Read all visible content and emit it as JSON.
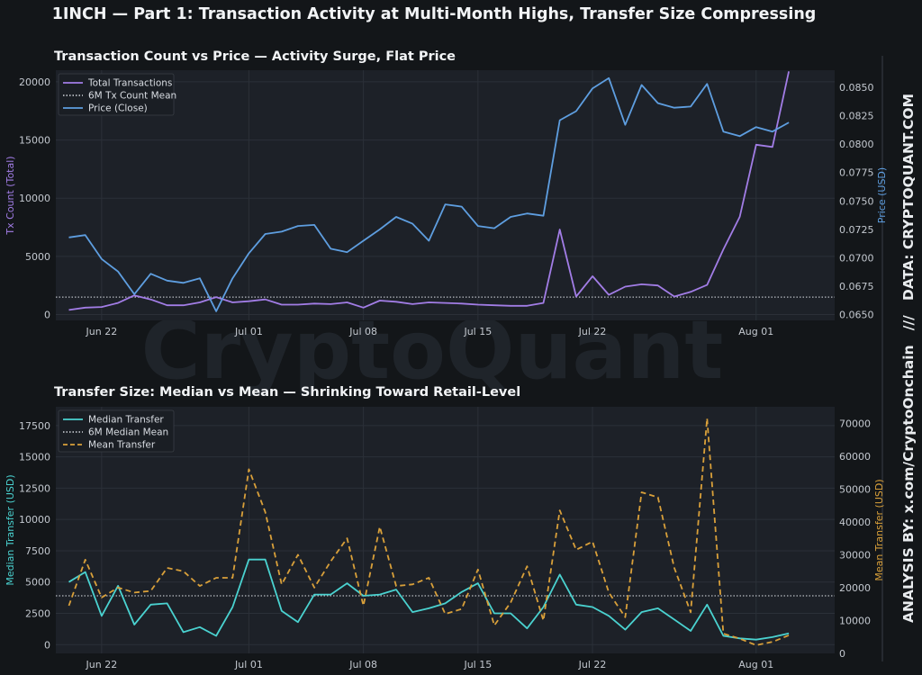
{
  "title": "1INCH — Part 1: Transaction Activity at Multi-Month Highs, Transfer Size Compressing",
  "watermark": "CryptoQuant",
  "side_text": "ANALYSIS BY: x.com/CryptoOnchain   ///   DATA: CRYPTOQUANT.COM",
  "colors": {
    "background": "#131619",
    "plot_bg": "#1d2128",
    "purple": "#a27de6",
    "blue": "#5e9ee0",
    "teal": "#4ad2d0",
    "orange": "#d9a03a",
    "ref_line": "#b8bcc2"
  },
  "chart_data": [
    {
      "type": "line",
      "title": "Transaction Count vs Price — Activity Surge, Flat Price",
      "ylabel": "Tx Count (Total)",
      "y2label": "Price (USD)",
      "ylim": [
        -500,
        21000
      ],
      "y2lim": [
        0.0645,
        0.0865
      ],
      "yticks": [
        0,
        5000,
        10000,
        15000,
        20000
      ],
      "y2ticks": [
        0.065,
        0.0675,
        0.07,
        0.0725,
        0.075,
        0.0775,
        0.08,
        0.0825,
        0.085
      ],
      "x_start": "Jun 20",
      "xlim": [
        -0.8,
        46.8
      ],
      "xticks": [
        {
          "x": 2,
          "label": "Jun 22"
        },
        {
          "x": 11,
          "label": "Jul 01"
        },
        {
          "x": 18,
          "label": "Jul 08"
        },
        {
          "x": 25,
          "label": "Jul 15"
        },
        {
          "x": 32,
          "label": "Jul 22"
        },
        {
          "x": 42,
          "label": "Aug 01"
        }
      ],
      "legend": {
        "position": "top-left",
        "entries": [
          "Total Transactions",
          "6M Tx Count Mean",
          "Price (Close)"
        ]
      },
      "reference": {
        "name": "6M Tx Count Mean",
        "value": 1500
      },
      "series": [
        {
          "name": "Total Transactions",
          "axis": "left",
          "values": [
            400,
            600,
            650,
            1000,
            1650,
            1300,
            800,
            800,
            1050,
            1500,
            1050,
            1150,
            1300,
            850,
            850,
            950,
            900,
            1050,
            600,
            1200,
            1100,
            900,
            1050,
            1000,
            950,
            850,
            800,
            750,
            750,
            1000,
            7300,
            1550,
            3300,
            1700,
            2400,
            2600,
            2500,
            1550,
            1950,
            2550,
            5600,
            8400,
            14600,
            14400,
            20900
          ]
        },
        {
          "name": "Price (Close)",
          "axis": "right",
          "values": [
            0.0718,
            0.072,
            0.0699,
            0.0688,
            0.0668,
            0.0686,
            0.068,
            0.0678,
            0.0682,
            0.0653,
            0.0682,
            0.0704,
            0.0721,
            0.0723,
            0.0728,
            0.0729,
            0.0708,
            0.0705,
            0.0715,
            0.0725,
            0.0736,
            0.073,
            0.0715,
            0.0747,
            0.0745,
            0.0728,
            0.0726,
            0.0736,
            0.0739,
            0.0737,
            0.0821,
            0.0829,
            0.0849,
            0.0858,
            0.0817,
            0.0852,
            0.0836,
            0.0832,
            0.0833,
            0.0853,
            0.0811,
            0.0807,
            0.0815,
            0.0811,
            0.0819
          ]
        }
      ]
    },
    {
      "type": "line",
      "title": "Transfer Size: Median vs Mean — Shrinking Toward Retail-Level",
      "ylabel": "Median Transfer (USD)",
      "y2label": "Mean Transfer (USD)",
      "ylim": [
        -700,
        19000
      ],
      "y2lim": [
        0,
        75000
      ],
      "yticks": [
        0,
        2500,
        5000,
        7500,
        10000,
        12500,
        15000,
        17500
      ],
      "y2ticks": [
        0,
        10000,
        20000,
        30000,
        40000,
        50000,
        60000,
        70000
      ],
      "x_start": "Jun 20",
      "xlim": [
        -0.8,
        46.8
      ],
      "xticks": [
        {
          "x": 2,
          "label": "Jun 22"
        },
        {
          "x": 11,
          "label": "Jul 01"
        },
        {
          "x": 18,
          "label": "Jul 08"
        },
        {
          "x": 25,
          "label": "Jul 15"
        },
        {
          "x": 32,
          "label": "Jul 22"
        },
        {
          "x": 42,
          "label": "Aug 01"
        }
      ],
      "legend": {
        "position": "top-left",
        "entries": [
          "Median Transfer",
          "6M Median Mean",
          "Mean Transfer"
        ]
      },
      "reference": {
        "name": "6M Median Mean",
        "value": 3900
      },
      "series": [
        {
          "name": "Median Transfer",
          "axis": "left",
          "values": [
            5000,
            5800,
            2300,
            4700,
            1600,
            3200,
            3300,
            1000,
            1400,
            700,
            3000,
            6800,
            6800,
            2700,
            1800,
            4000,
            4000,
            4900,
            3900,
            4000,
            4400,
            2600,
            2900,
            3300,
            4200,
            4900,
            2500,
            2500,
            1300,
            3000,
            5600,
            3200,
            3000,
            2300,
            1200,
            2600,
            2900,
            2000,
            1100,
            3200,
            700,
            500,
            400,
            600,
            900
          ]
        },
        {
          "name": "Mean Transfer",
          "axis": "right",
          "style": "dashed",
          "values": [
            14500,
            28500,
            17000,
            20000,
            18500,
            19000,
            26000,
            25000,
            20500,
            23000,
            23000,
            56000,
            43000,
            21000,
            30000,
            20000,
            28000,
            35000,
            14500,
            38500,
            20500,
            21000,
            23000,
            12000,
            13500,
            25500,
            8500,
            15500,
            26500,
            10000,
            43500,
            31500,
            34000,
            18500,
            11000,
            49000,
            47500,
            26000,
            12500,
            71500,
            6000,
            4500,
            2500,
            3500,
            5500
          ]
        }
      ]
    }
  ]
}
